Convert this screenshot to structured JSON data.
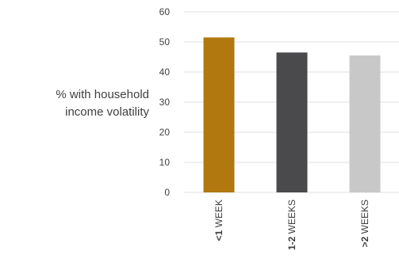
{
  "chart_data": {
    "type": "bar",
    "categories": [
      {
        "strong": "<1",
        "rest": " WEEK"
      },
      {
        "strong": "1-2",
        "rest": " WEEKS"
      },
      {
        "strong": ">2",
        "rest": " WEEKS"
      }
    ],
    "values": [
      51.5,
      46.5,
      45.5
    ],
    "colors": [
      "#b0780f",
      "#4a4a4c",
      "#c8c8c8"
    ],
    "ylabel_lines": [
      "% with household",
      "income volatility"
    ],
    "yticks": [
      0,
      10,
      20,
      30,
      40,
      50,
      60
    ],
    "ylim": [
      0,
      60
    ],
    "grid": true,
    "gridColor": "#e0e0e0"
  }
}
